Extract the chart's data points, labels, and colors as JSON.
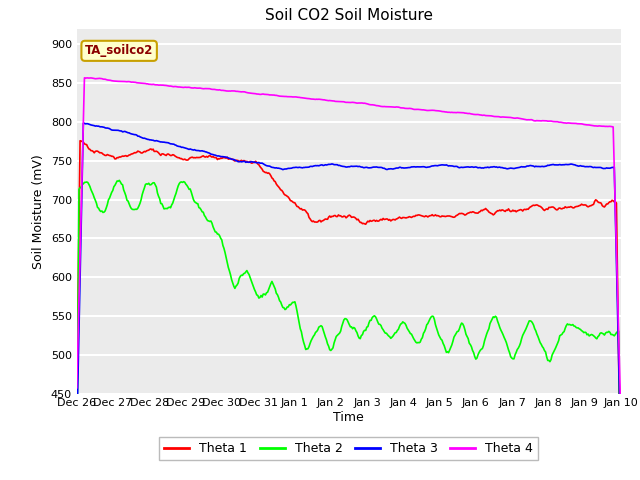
{
  "title": "Soil CO2 Soil Moisture",
  "xlabel": "Time",
  "ylabel": "Soil Moisture (mV)",
  "ylim": [
    450,
    920
  ],
  "yticks": [
    450,
    500,
    550,
    600,
    650,
    700,
    750,
    800,
    850,
    900
  ],
  "legend_label": "TA_soilco2",
  "legend_entries": [
    "Theta 1",
    "Theta 2",
    "Theta 3",
    "Theta 4"
  ],
  "line_colors": [
    "red",
    "lime",
    "blue",
    "magenta"
  ],
  "xtick_labels": [
    "Dec 26",
    "Dec 27",
    "Dec 28",
    "Dec 29",
    "Dec 30",
    "Dec 31",
    "Jan 1",
    "Jan 2",
    "Jan 3",
    "Jan 4",
    "Jan 5",
    "Jan 6",
    "Jan 7",
    "Jan 8",
    "Jan 9",
    "Jan 10"
  ],
  "background_color": "#ffffff",
  "plot_bg_color": "#ebebeb",
  "title_fontsize": 11,
  "axis_label_fontsize": 9
}
